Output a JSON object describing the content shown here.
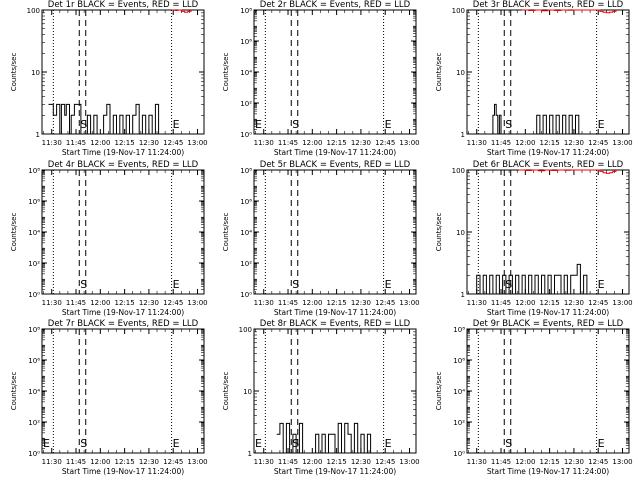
{
  "chart_data": [
    {
      "type": "line",
      "title": "Det 1r BLACK = Events, RED = LLD",
      "xlabel": "Start Time (19-Nov-17 11:24:00)",
      "ylabel": "Counts/sec",
      "scale": "log",
      "ylim": [
        1,
        100
      ],
      "y_ticks": [
        "1",
        "10",
        "100"
      ],
      "x_ticks": [
        "11:30",
        "11:45",
        "12:00",
        "12:15",
        "12:30",
        "12:45",
        "13:00"
      ],
      "markers": [
        {
          "label": "",
          "x": "11:31",
          "style": "dotted"
        },
        {
          "label": "S",
          "x": "11:47",
          "style": "dashed"
        },
        {
          "label": "",
          "x": "11:51",
          "style": "dashed"
        },
        {
          "label": "E",
          "x": "12:44",
          "style": "dotted"
        }
      ],
      "series": [
        {
          "color": "#000000",
          "x": [
            "11:28",
            "11:30",
            "11:31",
            "11:33",
            "11:35",
            "11:36",
            "11:38",
            "11:39",
            "11:41",
            "11:42",
            "11:44",
            "11:46",
            "11:48",
            "11:50",
            "11:52",
            "11:54",
            "11:56",
            "11:58",
            "12:00",
            "12:02",
            "12:04",
            "12:06",
            "12:08",
            "12:10",
            "12:12",
            "12:14",
            "12:16",
            "12:18",
            "12:20",
            "12:22",
            "12:24",
            "12:26",
            "12:28",
            "12:30",
            "12:32",
            "12:34",
            "12:36",
            "12:38"
          ],
          "values": [
            3,
            3,
            2,
            3,
            1,
            3,
            2,
            3,
            1,
            2,
            3,
            3,
            1,
            1,
            2,
            1,
            2,
            1,
            1,
            2,
            3,
            1,
            2,
            1,
            2,
            1,
            2,
            1,
            2,
            3,
            1,
            2,
            1,
            2,
            1,
            3,
            1,
            1
          ]
        },
        {
          "color": "#ff0000",
          "x": [
            "12:44",
            "12:46",
            "12:48",
            "12:50",
            "12:52",
            "12:54",
            "12:56"
          ],
          "values": [
            100,
            98,
            100,
            95,
            92,
            95,
            100
          ]
        }
      ]
    },
    {
      "type": "line",
      "title": "Det 2r BLACK = Events, RED = LLD",
      "xlabel": "Start Time (19-Nov-17 11:24:00)",
      "ylabel": "Counts/sec",
      "scale": "log",
      "ylim": [
        1,
        100000000
      ],
      "y_ticks": [
        "10⁰",
        "10²",
        "10⁴",
        "10⁶",
        "10⁸"
      ],
      "x_ticks": [
        "11:30",
        "11:45",
        "12:00",
        "12:15",
        "12:30",
        "12:45",
        "13:00"
      ],
      "markers": [
        {
          "label": "E",
          "x": "11:24",
          "style": "none"
        },
        {
          "label": "",
          "x": "11:31",
          "style": "dotted"
        },
        {
          "label": "S",
          "x": "11:47",
          "style": "dashed"
        },
        {
          "label": "",
          "x": "11:51",
          "style": "dashed"
        },
        {
          "label": "E",
          "x": "12:44",
          "style": "dotted"
        }
      ],
      "series": []
    },
    {
      "type": "line",
      "title": "Det 3r BLACK = Events, RED = LLD",
      "xlabel": "Start Time (19-Nov-17 11:24:00)",
      "ylabel": "Counts/sec",
      "scale": "log",
      "ylim": [
        1,
        100
      ],
      "y_ticks": [
        "1",
        "10",
        "100"
      ],
      "x_ticks": [
        "11:30",
        "11:45",
        "12:00",
        "12:15",
        "12:30",
        "12:45",
        "13:00"
      ],
      "markers": [
        {
          "label": "",
          "x": "11:31",
          "style": "dotted"
        },
        {
          "label": "S",
          "x": "11:47",
          "style": "dashed"
        },
        {
          "label": "",
          "x": "11:51",
          "style": "dashed"
        },
        {
          "label": "E",
          "x": "12:44",
          "style": "dotted"
        }
      ],
      "series": [
        {
          "color": "#000000",
          "x": [
            "11:38",
            "11:40",
            "11:41",
            "11:42",
            "11:43",
            "11:44",
            "11:45",
            "12:05",
            "12:07",
            "12:09",
            "12:11",
            "12:13",
            "12:15",
            "12:17",
            "12:19",
            "12:21",
            "12:23",
            "12:25",
            "12:27",
            "12:29",
            "12:31",
            "12:33"
          ],
          "values": [
            1,
            2,
            3,
            2,
            1,
            2,
            1,
            1,
            2,
            1,
            2,
            1,
            2,
            1,
            2,
            1,
            2,
            1,
            2,
            1,
            2,
            1
          ]
        },
        {
          "color": "#ff0000",
          "x": [
            "11:58",
            "12:02",
            "12:06",
            "12:10",
            "12:14",
            "12:18",
            "12:22",
            "12:26",
            "12:30",
            "12:44",
            "12:46",
            "12:48",
            "12:50",
            "12:52",
            "12:54",
            "12:56"
          ],
          "values": [
            100,
            98,
            100,
            97,
            100,
            98,
            100,
            99,
            100,
            100,
            95,
            92,
            90,
            92,
            95,
            100
          ]
        }
      ]
    },
    {
      "type": "line",
      "title": "Det 4r BLACK = Events, RED = LLD",
      "xlabel": "Start Time (19-Nov-17 11:24:00)",
      "ylabel": "Counts/sec",
      "scale": "log",
      "ylim": [
        1,
        100000000
      ],
      "y_ticks": [
        "10⁰",
        "10²",
        "10⁴",
        "10⁶",
        "10⁸"
      ],
      "x_ticks": [
        "11:30",
        "11:45",
        "12:00",
        "12:15",
        "12:30",
        "12:45",
        "13:00"
      ],
      "markers": [
        {
          "label": "",
          "x": "11:31",
          "style": "dotted"
        },
        {
          "label": "S",
          "x": "11:47",
          "style": "dashed"
        },
        {
          "label": "",
          "x": "11:51",
          "style": "dashed"
        },
        {
          "label": "E",
          "x": "12:44",
          "style": "dotted"
        }
      ],
      "series": []
    },
    {
      "type": "line",
      "title": "Det 5r BLACK = Events, RED = LLD",
      "xlabel": "Start Time (19-Nov-17 11:24:00)",
      "ylabel": "Counts/sec",
      "scale": "log",
      "ylim": [
        1,
        100000000
      ],
      "y_ticks": [
        "10⁰",
        "10²",
        "10⁴",
        "10⁶",
        "10⁸"
      ],
      "x_ticks": [
        "11:30",
        "11:45",
        "12:00",
        "12:15",
        "12:30",
        "12:45",
        "13:00"
      ],
      "markers": [
        {
          "label": "",
          "x": "11:31",
          "style": "dotted"
        },
        {
          "label": "S",
          "x": "11:47",
          "style": "dashed"
        },
        {
          "label": "",
          "x": "11:51",
          "style": "dashed"
        },
        {
          "label": "E",
          "x": "12:44",
          "style": "dotted"
        }
      ],
      "series": []
    },
    {
      "type": "line",
      "title": "Det 6r BLACK = Events, RED = LLD",
      "xlabel": "Start Time (19-Nov-17 11:24:00)",
      "ylabel": "Counts/sec",
      "scale": "log",
      "ylim": [
        1,
        100
      ],
      "y_ticks": [
        "1",
        "10",
        "100"
      ],
      "x_ticks": [
        "11:30",
        "11:45",
        "12:00",
        "12:15",
        "12:30",
        "12:45",
        "13:00"
      ],
      "markers": [
        {
          "label": "",
          "x": "11:31",
          "style": "dotted"
        },
        {
          "label": "S",
          "x": "11:47",
          "style": "dashed"
        },
        {
          "label": "",
          "x": "11:51",
          "style": "dashed"
        },
        {
          "label": "E",
          "x": "12:44",
          "style": "dotted"
        }
      ],
      "series": [
        {
          "color": "#000000",
          "x": [
            "11:28",
            "11:30",
            "11:32",
            "11:34",
            "11:36",
            "11:38",
            "11:40",
            "11:42",
            "11:44",
            "11:46",
            "11:48",
            "11:50",
            "11:52",
            "11:54",
            "11:56",
            "11:58",
            "12:00",
            "12:02",
            "12:04",
            "12:06",
            "12:08",
            "12:10",
            "12:12",
            "12:14",
            "12:16",
            "12:18",
            "12:20",
            "12:22",
            "12:24",
            "12:26",
            "12:28",
            "12:30",
            "12:32",
            "12:34",
            "12:36",
            "12:38"
          ],
          "values": [
            1,
            2,
            1,
            2,
            1,
            2,
            1,
            2,
            1,
            2,
            1,
            2,
            1,
            2,
            1,
            2,
            1,
            2,
            1,
            2,
            1,
            2,
            1,
            2,
            1,
            2,
            2,
            1,
            2,
            1,
            2,
            2,
            3,
            1,
            2,
            1
          ]
        },
        {
          "color": "#ff0000",
          "x": [
            "11:56",
            "12:00",
            "12:04",
            "12:08",
            "12:12",
            "12:16",
            "12:20",
            "12:24",
            "12:28",
            "12:30",
            "12:44",
            "12:46",
            "12:48",
            "12:50",
            "12:52",
            "12:54",
            "12:56"
          ],
          "values": [
            100,
            98,
            100,
            97,
            100,
            98,
            100,
            99,
            100,
            100,
            100,
            95,
            90,
            88,
            90,
            95,
            100
          ]
        }
      ]
    },
    {
      "type": "line",
      "title": "Det 7r BLACK = Events, RED = LLD",
      "xlabel": "Start Time (19-Nov-17 11:24:00)",
      "ylabel": "Counts/sec",
      "scale": "log",
      "ylim": [
        1,
        100000000
      ],
      "y_ticks": [
        "10⁰",
        "10²",
        "10⁴",
        "10⁶",
        "10⁸"
      ],
      "x_ticks": [
        "11:30",
        "11:45",
        "12:00",
        "12:15",
        "12:30",
        "12:45",
        "13:00"
      ],
      "markers": [
        {
          "label": "E",
          "x": "11:24",
          "style": "none"
        },
        {
          "label": "",
          "x": "11:31",
          "style": "dotted"
        },
        {
          "label": "S",
          "x": "11:47",
          "style": "dashed"
        },
        {
          "label": "",
          "x": "11:51",
          "style": "dashed"
        },
        {
          "label": "E",
          "x": "12:44",
          "style": "dotted"
        }
      ],
      "series": []
    },
    {
      "type": "line",
      "title": "Det 8r BLACK = Events, RED = LLD",
      "xlabel": "Start Time (19-Nov-17 11:24:00)",
      "ylabel": "Counts/sec",
      "scale": "log",
      "ylim": [
        1,
        100
      ],
      "y_ticks": [
        "1",
        "10",
        "100"
      ],
      "x_ticks": [
        "11:30",
        "11:45",
        "12:00",
        "12:15",
        "12:30",
        "12:45",
        "13:00"
      ],
      "markers": [
        {
          "label": "E",
          "x": "11:24",
          "style": "none"
        },
        {
          "label": "",
          "x": "11:31",
          "style": "dotted"
        },
        {
          "label": "S",
          "x": "11:47",
          "style": "dashed"
        },
        {
          "label": "",
          "x": "11:51",
          "style": "dashed"
        },
        {
          "label": "E",
          "x": "12:44",
          "style": "dotted"
        }
      ],
      "series": [
        {
          "color": "#000000",
          "x": [
            "11:38",
            "11:40",
            "11:42",
            "11:44",
            "11:46",
            "11:48",
            "11:50",
            "11:52",
            "11:54",
            "11:56",
            "12:00",
            "12:02",
            "12:04",
            "12:06",
            "12:08",
            "12:10",
            "12:12",
            "12:14",
            "12:16",
            "12:18",
            "12:20",
            "12:22",
            "12:24",
            "12:26",
            "12:28",
            "12:30",
            "12:32",
            "12:34",
            "12:36",
            "12:38"
          ],
          "values": [
            2,
            3,
            1,
            3,
            1,
            2,
            1,
            3,
            1,
            1,
            1,
            2,
            1,
            2,
            1,
            2,
            2,
            1,
            3,
            1,
            3,
            2,
            1,
            3,
            1,
            2,
            1,
            2,
            1,
            1
          ]
        }
      ]
    },
    {
      "type": "line",
      "title": "Det 9r BLACK = Events, RED = LLD",
      "xlabel": "Start Time (19-Nov-17 11:24:00)",
      "ylabel": "Counts/sec",
      "scale": "log",
      "ylim": [
        1,
        100000000
      ],
      "y_ticks": [
        "10⁰",
        "10²",
        "10⁴",
        "10⁶",
        "10⁸"
      ],
      "x_ticks": [
        "11:30",
        "11:45",
        "12:00",
        "12:15",
        "12:30",
        "12:45",
        "13:00"
      ],
      "markers": [
        {
          "label": "",
          "x": "11:31",
          "style": "dotted"
        },
        {
          "label": "S",
          "x": "11:47",
          "style": "dashed"
        },
        {
          "label": "",
          "x": "11:51",
          "style": "dashed"
        },
        {
          "label": "E",
          "x": "12:44",
          "style": "dotted"
        }
      ],
      "series": []
    }
  ]
}
